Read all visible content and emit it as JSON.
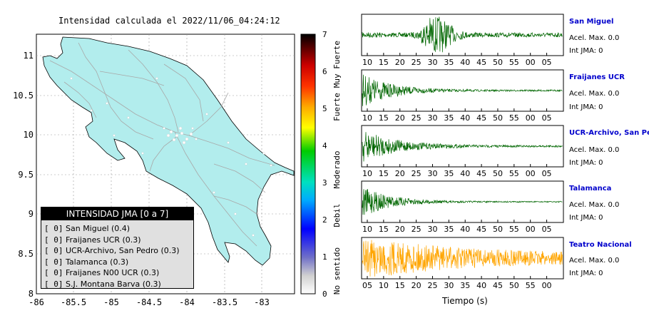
{
  "map": {
    "title": "Intensidad calculada el 2022/11/06_04:24:12",
    "lat_ticks": [
      "11",
      "10.5",
      "10",
      "9.5",
      "9",
      "8.5",
      "8"
    ],
    "lon_ticks": [
      "-86",
      "-85.5",
      "-85",
      "-84.5",
      "-84",
      "-83.5",
      "-83"
    ],
    "land_color": "#b2eded"
  },
  "legend": {
    "title": "INTENSIDAD JMA [0 a 7]",
    "items": [
      {
        "level": "[ 0]",
        "name": "San Miguel (0.4)"
      },
      {
        "level": "[ 0]",
        "name": "Fraijanes UCR (0.3)"
      },
      {
        "level": "[ 0]",
        "name": "UCR-Archivo, San Pedro (0.3)"
      },
      {
        "level": "[ 0]",
        "name": "Talamanca (0.3)"
      },
      {
        "level": "[ 0]",
        "name": "Fraijanes N00 UCR (0.3)"
      },
      {
        "level": "[ 0]",
        "name": "S.J. Montana Barva (0.3)"
      }
    ]
  },
  "colorbar": {
    "ticks": [
      "7",
      "6",
      "5",
      "4",
      "3",
      "2",
      "1",
      "0"
    ],
    "labels": [
      "Muy Fuerte",
      "Fuerte",
      "Moderado",
      "Debil",
      "No sentido"
    ]
  },
  "stations": [
    {
      "name": "San Miguel",
      "accel": "Acel. Max. 0.0",
      "jma": "Int JMA: 0",
      "color": "#006600",
      "ticks": [
        "10",
        "15",
        "20",
        "25",
        "30",
        "35",
        "40",
        "45",
        "50",
        "55",
        "00",
        "05"
      ]
    },
    {
      "name": "Fraijanes UCR",
      "accel": "Acel. Max. 0.0",
      "jma": "Int JMA: 0",
      "color": "#006600",
      "ticks": [
        "10",
        "15",
        "20",
        "25",
        "30",
        "35",
        "40",
        "45",
        "50",
        "55",
        "00",
        "05"
      ]
    },
    {
      "name": "UCR-Archivo, San Pedro",
      "accel": "Acel. Max. 0.0",
      "jma": "Int JMA: 0",
      "color": "#006600",
      "ticks": [
        "10",
        "15",
        "20",
        "25",
        "30",
        "35",
        "40",
        "45",
        "50",
        "55",
        "00",
        "05"
      ]
    },
    {
      "name": "Talamanca",
      "accel": "Acel. Max. 0.0",
      "jma": "Int JMA: 0",
      "color": "#006600",
      "ticks": [
        "10",
        "15",
        "20",
        "25",
        "30",
        "35",
        "40",
        "45",
        "50",
        "55",
        "00",
        "05"
      ]
    },
    {
      "name": "Teatro Nacional",
      "accel": "Acel. Max. 0.0",
      "jma": "Int JMA: 0",
      "color": "#ffa500",
      "ticks": [
        "05",
        "10",
        "15",
        "20",
        "25",
        "30",
        "35",
        "40",
        "45",
        "50",
        "55",
        "00"
      ]
    }
  ],
  "time_axis_label": "Tiempo (s)"
}
